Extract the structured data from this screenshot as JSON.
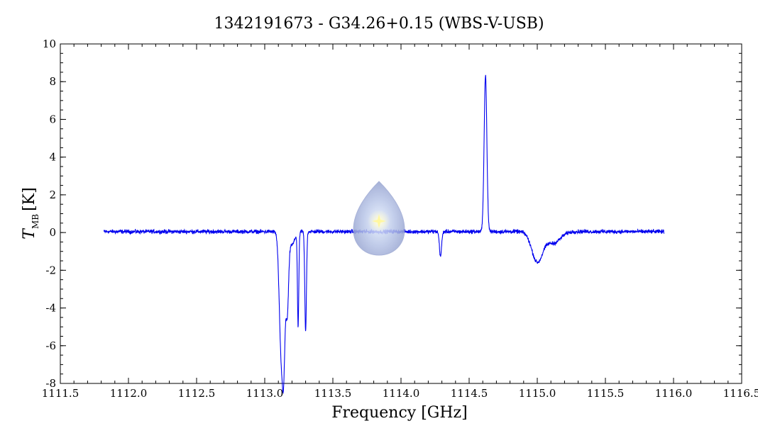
{
  "chart_data": {
    "type": "line",
    "title": "1342191673 - G34.26+0.15 (WBS-V-USB)",
    "xlabel": "Frequency [GHz]",
    "ylabel_main": "T",
    "ylabel_sub": "MB",
    "ylabel_unit": "[K]",
    "xlim": [
      1111.5,
      1116.5
    ],
    "ylim": [
      -8,
      10
    ],
    "x_ticks": [
      "1111.5",
      "1112.0",
      "1112.5",
      "1113.0",
      "1113.5",
      "1114.0",
      "1114.5",
      "1115.0",
      "1115.5",
      "1116.0",
      "1116.5"
    ],
    "y_ticks": [
      "-8",
      "-6",
      "-4",
      "-2",
      "0",
      "2",
      "4",
      "6",
      "8",
      "10"
    ],
    "grid": false,
    "series": [
      {
        "color": "#0000ee",
        "x_range": [
          1111.82,
          1115.93
        ],
        "baseline": 0.05,
        "noise": 0.09,
        "features": [
          {
            "center": 1113.12,
            "depth": -6.2,
            "width": 0.014
          },
          {
            "center": 1113.14,
            "depth": -5.6,
            "width": 0.01
          },
          {
            "center": 1113.165,
            "depth": -4.2,
            "width": 0.01
          },
          {
            "center": 1113.2,
            "depth": -0.7,
            "width": 0.02
          },
          {
            "center": 1113.245,
            "depth": -5.0,
            "width": 0.005
          },
          {
            "center": 1113.3,
            "depth": -5.3,
            "width": 0.006
          },
          {
            "center": 1114.29,
            "depth": -1.3,
            "width": 0.008
          },
          {
            "center": 1114.62,
            "depth": 8.3,
            "width": 0.01
          },
          {
            "center": 1115.0,
            "depth": -1.6,
            "width": 0.04
          },
          {
            "center": 1115.12,
            "depth": -0.6,
            "width": 0.05
          }
        ]
      }
    ]
  },
  "watermark": {
    "icon": "droplet-logo-icon",
    "colors": [
      "#c8d2ea",
      "#8f9ccb",
      "#fffbd0"
    ]
  }
}
